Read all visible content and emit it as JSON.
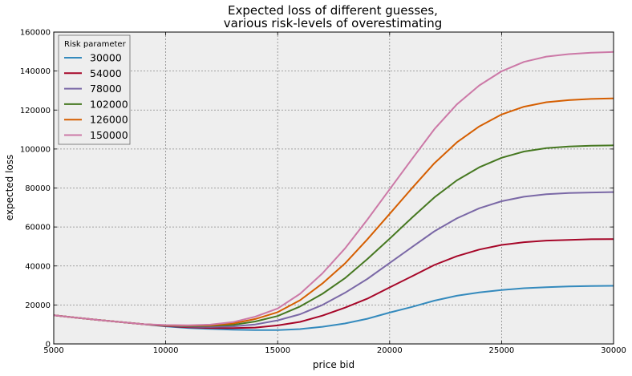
{
  "chart_data": {
    "type": "line",
    "title": [
      "Expected loss of different guesses,",
      "various risk-levels of overestimating"
    ],
    "xlabel": "price bid",
    "ylabel": "expected loss",
    "xlim": [
      5000,
      30000
    ],
    "ylim": [
      0,
      160000
    ],
    "xticks": [
      5000,
      10000,
      15000,
      20000,
      25000,
      30000
    ],
    "yticks": [
      0,
      20000,
      40000,
      60000,
      80000,
      100000,
      120000,
      140000,
      160000
    ],
    "grid": true,
    "legend": {
      "title": "Risk parameter",
      "placement": "top-left"
    },
    "x": [
      5000,
      6000,
      7000,
      8000,
      9000,
      10000,
      11000,
      12000,
      13000,
      14000,
      15000,
      16000,
      17000,
      18000,
      19000,
      20000,
      21000,
      22000,
      23000,
      24000,
      25000,
      26000,
      27000,
      28000,
      29000,
      30000
    ],
    "series": [
      {
        "name": "30000",
        "color": "#348ABD",
        "values": [
          14700,
          13500,
          12300,
          11200,
          10100,
          9000,
          8200,
          7700,
          7300,
          7100,
          7100,
          7600,
          8800,
          10500,
          12900,
          16100,
          19000,
          22200,
          24700,
          26400,
          27700,
          28600,
          29100,
          29500,
          29700,
          29800
        ]
      },
      {
        "name": "54000",
        "color": "#A60628",
        "values": [
          14700,
          13500,
          12300,
          11200,
          10100,
          9200,
          8500,
          8200,
          8100,
          8400,
          9500,
          11300,
          14500,
          18600,
          23200,
          29000,
          34700,
          40500,
          45000,
          48400,
          50800,
          52200,
          53000,
          53400,
          53700,
          53800
        ]
      },
      {
        "name": "78000",
        "color": "#7A68A6",
        "values": [
          14700,
          13500,
          12300,
          11200,
          10100,
          9400,
          8900,
          8700,
          9000,
          10000,
          12100,
          15200,
          20000,
          26200,
          33300,
          41500,
          49700,
          57800,
          64400,
          69600,
          73200,
          75500,
          76800,
          77400,
          77700,
          77900
        ]
      },
      {
        "name": "102000",
        "color": "#467821",
        "values": [
          14700,
          13500,
          12300,
          11200,
          10100,
          9500,
          9200,
          9300,
          9800,
          11500,
          14300,
          19200,
          25700,
          33700,
          43500,
          54000,
          64800,
          75200,
          83900,
          90600,
          95500,
          98700,
          100500,
          101300,
          101700,
          101900
        ]
      },
      {
        "name": "126000",
        "color": "#D55E00",
        "values": [
          14700,
          13500,
          12300,
          11200,
          10100,
          9600,
          9400,
          9600,
          10500,
          12800,
          16300,
          22400,
          31000,
          41200,
          53600,
          66700,
          79900,
          92700,
          103400,
          111600,
          117700,
          121700,
          124000,
          125100,
          125700,
          126000
        ]
      },
      {
        "name": "150000",
        "color": "#CC79A7",
        "values": [
          14700,
          13500,
          12300,
          11200,
          10100,
          9700,
          9600,
          9900,
          11200,
          14000,
          18200,
          25700,
          36200,
          48900,
          63700,
          79300,
          94900,
          110200,
          122900,
          132600,
          139900,
          144700,
          147400,
          148700,
          149400,
          149800
        ]
      }
    ]
  }
}
